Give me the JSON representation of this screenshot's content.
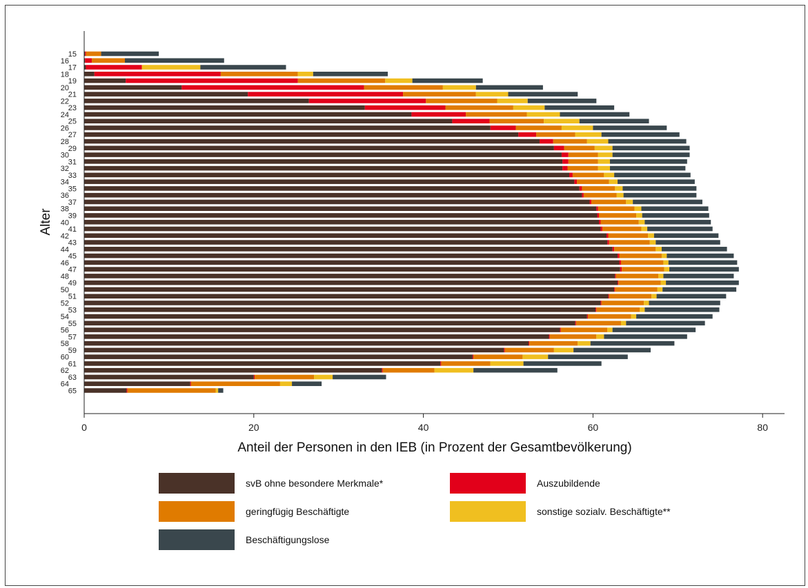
{
  "chart_data": {
    "type": "bar",
    "orientation": "horizontal",
    "stacked": true,
    "xlabel": "Anteil der Personen in den IEB (in Prozent der Gesamtbevölkerung)",
    "ylabel": "Alter",
    "xlim": [
      0,
      82
    ],
    "xticks": [
      0,
      20,
      40,
      60,
      80
    ],
    "grid": false,
    "legend_position": "bottom",
    "categories": [
      "15",
      "16",
      "17",
      "18",
      "19",
      "20",
      "21",
      "22",
      "23",
      "24",
      "25",
      "26",
      "27",
      "28",
      "29",
      "30",
      "31",
      "32",
      "33",
      "34",
      "35",
      "36",
      "37",
      "38",
      "39",
      "40",
      "41",
      "42",
      "43",
      "44",
      "45",
      "46",
      "47",
      "48",
      "49",
      "50",
      "51",
      "52",
      "53",
      "54",
      "55",
      "56",
      "57",
      "58",
      "59",
      "60",
      "61",
      "62",
      "63",
      "64",
      "65"
    ],
    "series": [
      {
        "name": "svB ohne besondere Merkmale*",
        "color": "#4a3228",
        "values": [
          0.1,
          0.1,
          0.2,
          1.2,
          4.9,
          11.5,
          19.3,
          26.5,
          33.1,
          38.6,
          43.4,
          47.9,
          51.2,
          53.7,
          55.4,
          56.3,
          56.4,
          56.4,
          57.2,
          57.8,
          58.4,
          58.7,
          59.6,
          60.4,
          60.5,
          60.7,
          60.9,
          61.6,
          61.7,
          62.3,
          62.9,
          63.1,
          63.2,
          62.6,
          62.9,
          62.5,
          61.8,
          60.9,
          60.3,
          59.3,
          57.9,
          56.1,
          54.8,
          52.4,
          49.5,
          45.8,
          42.0,
          35.1,
          20.0,
          12.5,
          5.0
        ]
      },
      {
        "name": "Auszubildende",
        "color": "#e2001a",
        "values": [
          0.1,
          0.8,
          6.6,
          14.9,
          20.3,
          21.5,
          18.3,
          13.8,
          9.5,
          6.4,
          4.4,
          3.0,
          2.1,
          1.6,
          1.2,
          0.8,
          0.7,
          0.6,
          0.4,
          0.3,
          0.3,
          0.2,
          0.2,
          0.2,
          0.2,
          0.2,
          0.2,
          0.2,
          0.2,
          0.2,
          0.2,
          0.2,
          0.2,
          0.1,
          0.1,
          0.1,
          0.1,
          0.1,
          0.1,
          0.1,
          0.1,
          0.1,
          0.1,
          0.1,
          0.1,
          0.1,
          0.1,
          0.1,
          0.1,
          0.1,
          0.1
        ]
      },
      {
        "name": "geringfügig Beschäftigte",
        "color": "#e07b00",
        "values": [
          1.8,
          3.9,
          0.0,
          9.1,
          10.3,
          9.3,
          8.6,
          8.4,
          8.0,
          7.2,
          6.4,
          5.4,
          4.6,
          4.0,
          3.6,
          3.5,
          3.5,
          3.6,
          3.7,
          3.8,
          3.9,
          3.9,
          4.1,
          4.3,
          4.4,
          4.5,
          4.6,
          4.7,
          4.8,
          4.9,
          5.0,
          5.0,
          5.0,
          5.0,
          5.0,
          5.0,
          5.0,
          5.0,
          5.1,
          5.1,
          5.3,
          5.5,
          5.5,
          5.7,
          5.8,
          5.8,
          5.8,
          6.1,
          7.0,
          10.5,
          10.4
        ]
      },
      {
        "name": "sonstige sozialv. Beschäftigte**",
        "color": "#f0bf20",
        "values": [
          0.0,
          0.0,
          6.9,
          1.8,
          3.2,
          3.9,
          3.8,
          3.6,
          3.7,
          3.9,
          4.2,
          3.7,
          3.1,
          2.5,
          2.1,
          1.7,
          1.4,
          1.4,
          1.2,
          1.0,
          0.9,
          0.8,
          0.8,
          0.8,
          0.7,
          0.7,
          0.7,
          0.7,
          0.7,
          0.7,
          0.6,
          0.6,
          0.6,
          0.6,
          0.6,
          0.6,
          0.6,
          0.6,
          0.6,
          0.6,
          0.6,
          0.6,
          0.9,
          1.5,
          2.3,
          3.0,
          3.9,
          4.6,
          2.2,
          1.4,
          0.3
        ]
      },
      {
        "name": "Beschäftigungslose",
        "color": "#3a474d",
        "values": [
          6.8,
          11.7,
          10.1,
          8.8,
          8.3,
          7.9,
          8.2,
          8.1,
          8.2,
          8.2,
          8.2,
          8.7,
          9.2,
          9.2,
          9.1,
          9.1,
          9.1,
          8.9,
          9.0,
          9.1,
          8.7,
          8.6,
          8.2,
          7.9,
          7.9,
          7.8,
          7.7,
          7.6,
          7.6,
          7.7,
          7.9,
          8.1,
          8.2,
          8.3,
          8.6,
          8.7,
          8.2,
          8.4,
          8.8,
          9.0,
          9.3,
          9.8,
          9.8,
          9.9,
          9.1,
          9.4,
          9.2,
          9.9,
          6.3,
          3.5,
          0.6
        ]
      }
    ]
  }
}
